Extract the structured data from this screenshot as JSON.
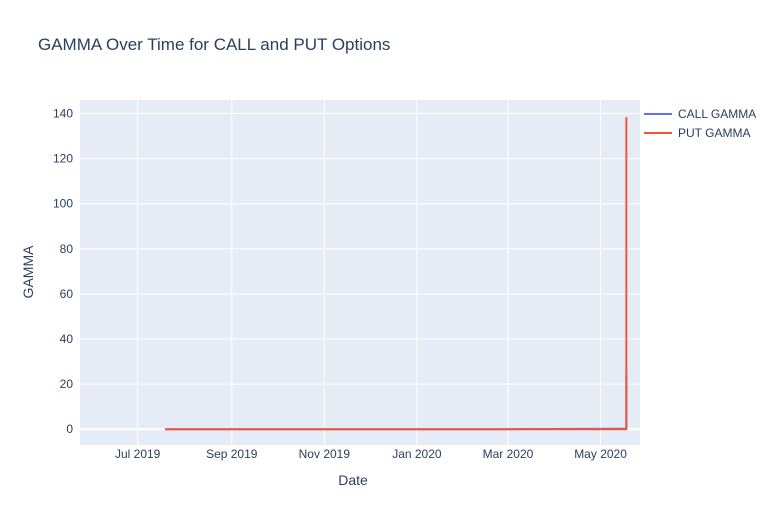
{
  "chart_data": {
    "type": "line",
    "title": "GAMMA Over Time for CALL and PUT Options",
    "xlabel": "Date",
    "ylabel": "GAMMA",
    "xlim": [
      "2019-05-24",
      "2020-05-27"
    ],
    "ylim": [
      -7,
      146
    ],
    "x_ticks": [
      {
        "date": "2019-07-01",
        "label": "Jul 2019"
      },
      {
        "date": "2019-09-01",
        "label": "Sep 2019"
      },
      {
        "date": "2019-11-01",
        "label": "Nov 2019"
      },
      {
        "date": "2020-01-01",
        "label": "Jan 2020"
      },
      {
        "date": "2020-03-01",
        "label": "Mar 2020"
      },
      {
        "date": "2020-05-01",
        "label": "May 2020"
      }
    ],
    "y_ticks": [
      0,
      20,
      40,
      60,
      80,
      100,
      120,
      140
    ],
    "grid": true,
    "legend_position": "top-right",
    "series": [
      {
        "name": "CALL GAMMA",
        "color": "#636efa",
        "x": [
          "2019-07-19",
          "2020-02-20",
          "2020-05-16",
          "2020-05-18",
          "2020-05-18",
          "2020-05-18"
        ],
        "y": [
          0,
          0,
          0.2,
          0.2,
          24,
          0
        ]
      },
      {
        "name": "PUT GAMMA",
        "color": "#ef553b",
        "x": [
          "2019-07-19",
          "2020-05-18",
          "2020-05-18",
          "2020-05-18"
        ],
        "y": [
          0,
          0,
          138,
          0
        ]
      }
    ]
  }
}
